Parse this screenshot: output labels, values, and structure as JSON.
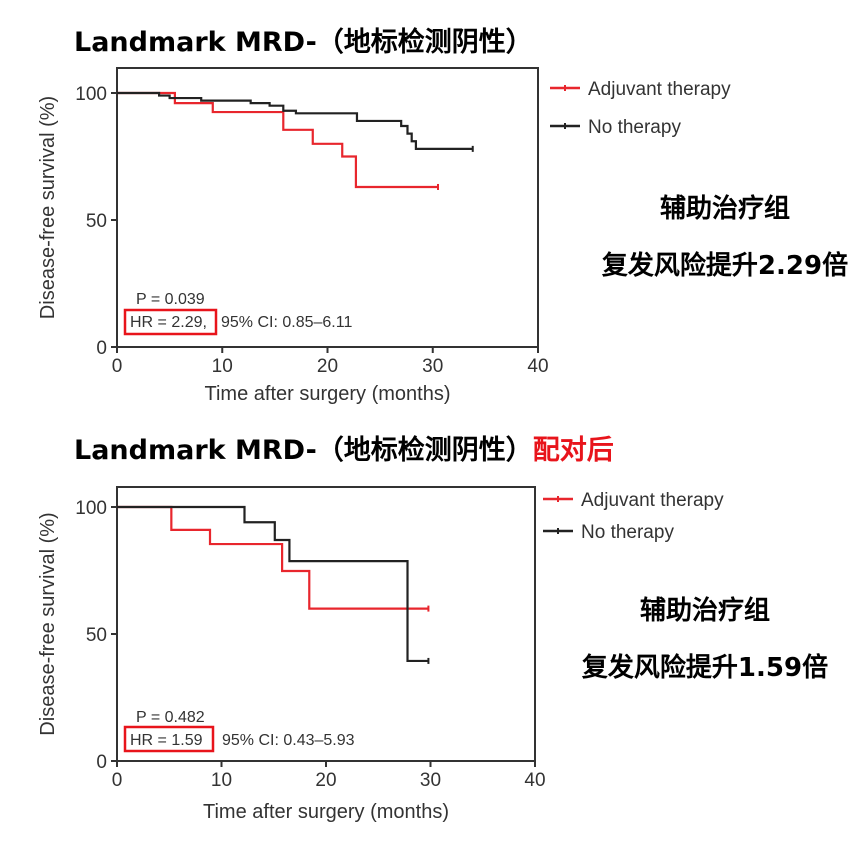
{
  "titles": [
    {
      "main": "Landmark MRD-（地标检测阴性）",
      "suffix": ""
    },
    {
      "main": "Landmark MRD-（地标检测阴性）",
      "suffix": "配对后"
    }
  ],
  "notes": [
    {
      "line1": "辅助治疗组",
      "line2": "复发风险提升2.29倍"
    },
    {
      "line1": "辅助治疗组",
      "line2": "复发风险提升1.59倍"
    }
  ],
  "colors": {
    "adjuvant": "#e8262d",
    "none": "#222222",
    "highlight": "#e8141b"
  },
  "chart_data": [
    {
      "type": "line",
      "subtype": "kaplan-meier step",
      "xlabel": "Time after surgery (months)",
      "ylabel": "Disease-free survival (%)",
      "xlim": [
        0,
        40
      ],
      "ylim": [
        0,
        100
      ],
      "xticks": [
        "0",
        "10",
        "20",
        "30",
        "40"
      ],
      "yticks": [
        "0",
        "50",
        "100"
      ],
      "legend_placement": "right",
      "p_text": "P = 0.039",
      "hr_text": "HR = 2.29,",
      "ci_text": "95% CI: 0.85–6.11",
      "series": [
        {
          "name": "Adjuvant therapy",
          "color": "#e8262d",
          "points": [
            [
              0,
              100
            ],
            [
              5.5,
              96
            ],
            [
              9.1,
              92.5
            ],
            [
              15.8,
              85.5
            ],
            [
              18.6,
              80
            ],
            [
              21.4,
              75
            ],
            [
              22.7,
              63
            ],
            [
              30.5,
              63
            ]
          ]
        },
        {
          "name": "No therapy",
          "color": "#222222",
          "points": [
            [
              0,
              100
            ],
            [
              4,
              99
            ],
            [
              5,
              98
            ],
            [
              8,
              97
            ],
            [
              12.7,
              96
            ],
            [
              14.5,
              95
            ],
            [
              15.8,
              93
            ],
            [
              17,
              92
            ],
            [
              22.8,
              89
            ],
            [
              27,
              87
            ],
            [
              27.6,
              84
            ],
            [
              28,
              81
            ],
            [
              28.4,
              78
            ],
            [
              33.8,
              78
            ]
          ]
        }
      ]
    },
    {
      "type": "line",
      "subtype": "kaplan-meier step",
      "xlabel": "Time after surgery (months)",
      "ylabel": "Disease-free survival (%)",
      "xlim": [
        0,
        40
      ],
      "ylim": [
        0,
        100
      ],
      "xticks": [
        "0",
        "10",
        "20",
        "30",
        "40"
      ],
      "yticks": [
        "0",
        "50",
        "100"
      ],
      "legend_placement": "right",
      "p_text": "P = 0.482",
      "hr_text": "HR = 1.59",
      "ci_text": "95% CI: 0.43–5.93",
      "series": [
        {
          "name": "Adjuvant therapy",
          "color": "#e8262d",
          "points": [
            [
              0,
              100
            ],
            [
              5.2,
              91
            ],
            [
              8.9,
              85.4
            ],
            [
              15.8,
              74.8
            ],
            [
              18.4,
              60
            ],
            [
              29.8,
              60
            ]
          ]
        },
        {
          "name": "No therapy",
          "color": "#222222",
          "points": [
            [
              0,
              100
            ],
            [
              12.2,
              94
            ],
            [
              15.1,
              87
            ],
            [
              16.5,
              78.7
            ],
            [
              27.8,
              39.4
            ],
            [
              29.8,
              39.4
            ]
          ]
        }
      ]
    }
  ]
}
